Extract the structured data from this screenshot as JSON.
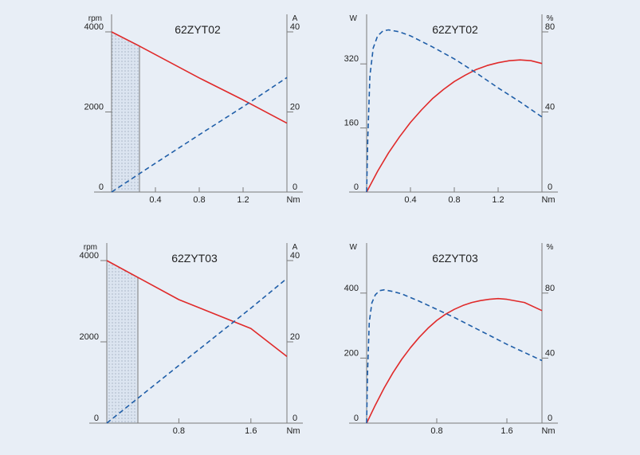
{
  "colors": {
    "background": "#e8eef6",
    "red": "#e02a2a",
    "blue": "#1f5ea8",
    "axis": "#7a7a7a"
  },
  "chart_data": [
    {
      "type": "line",
      "title": "62ZYT02",
      "left_axis": {
        "unit": "rpm",
        "range": [
          0,
          4000
        ],
        "ticks": [
          0,
          2000,
          4000
        ]
      },
      "right_axis": {
        "unit": "A",
        "range": [
          0,
          40
        ],
        "ticks": [
          0,
          20,
          40
        ]
      },
      "x_axis": {
        "unit": "Nm",
        "range": [
          0,
          1.6
        ],
        "ticks": [
          0.4,
          0.8,
          1.2
        ]
      },
      "shaded_region": {
        "x": [
          0,
          0.25
        ]
      },
      "series": [
        {
          "style": "solid",
          "color": "red",
          "axis": "left",
          "points": [
            [
              0,
              4000
            ],
            [
              0.25,
              3650
            ],
            [
              0.8,
              2850
            ],
            [
              1.2,
              2300
            ],
            [
              1.6,
              1720
            ]
          ]
        },
        {
          "style": "dashed",
          "color": "blue",
          "axis": "right",
          "points": [
            [
              0,
              0
            ],
            [
              0.4,
              7.2
            ],
            [
              0.8,
              14.3
            ],
            [
              1.2,
              21.3
            ],
            [
              1.6,
              28.6
            ]
          ]
        }
      ]
    },
    {
      "type": "line",
      "title": "62ZYT02",
      "left_axis": {
        "unit": "W",
        "range": [
          0,
          400
        ],
        "ticks": [
          0,
          160,
          320
        ]
      },
      "right_axis": {
        "unit": "%",
        "range": [
          0,
          80
        ],
        "ticks": [
          0,
          40,
          80
        ]
      },
      "x_axis": {
        "unit": "Nm",
        "range": [
          0,
          1.6
        ],
        "ticks": [
          0.4,
          0.8,
          1.2
        ]
      },
      "series": [
        {
          "style": "solid",
          "color": "red",
          "axis": "left",
          "points": [
            [
              0,
              0
            ],
            [
              0.1,
              52
            ],
            [
              0.2,
              98
            ],
            [
              0.3,
              138
            ],
            [
              0.4,
              174
            ],
            [
              0.5,
              205
            ],
            [
              0.6,
              233
            ],
            [
              0.7,
              256
            ],
            [
              0.8,
              276
            ],
            [
              0.9,
              292
            ],
            [
              1.0,
              306
            ],
            [
              1.1,
              316
            ],
            [
              1.2,
              323
            ],
            [
              1.3,
              328
            ],
            [
              1.4,
              330
            ],
            [
              1.5,
              328
            ],
            [
              1.6,
              321
            ]
          ]
        },
        {
          "style": "dashed",
          "color": "blue",
          "axis": "right",
          "points": [
            [
              0,
              0
            ],
            [
              0.01,
              26
            ],
            [
              0.03,
              58
            ],
            [
              0.06,
              72
            ],
            [
              0.1,
              78
            ],
            [
              0.15,
              80.5
            ],
            [
              0.2,
              81
            ],
            [
              0.3,
              80
            ],
            [
              0.4,
              78
            ],
            [
              0.6,
              72.5
            ],
            [
              0.8,
              66.5
            ],
            [
              1.0,
              59.5
            ],
            [
              1.2,
              52
            ],
            [
              1.4,
              45
            ],
            [
              1.6,
              37.5
            ]
          ]
        }
      ]
    },
    {
      "type": "line",
      "title": "62ZYT03",
      "left_axis": {
        "unit": "rpm",
        "range": [
          0,
          4000
        ],
        "ticks": [
          0,
          2000,
          4000
        ]
      },
      "right_axis": {
        "unit": "A",
        "range": [
          0,
          40
        ],
        "ticks": [
          0,
          20,
          40
        ]
      },
      "x_axis": {
        "unit": "Nm",
        "range": [
          0,
          2.0
        ],
        "ticks": [
          0.8,
          1.6
        ]
      },
      "shaded_region": {
        "x": [
          0,
          0.35
        ]
      },
      "series": [
        {
          "style": "solid",
          "color": "red",
          "axis": "left",
          "points": [
            [
              0,
              4000
            ],
            [
              0.35,
              3580
            ],
            [
              0.8,
              3040
            ],
            [
              1.6,
              2330
            ],
            [
              2.0,
              1640
            ]
          ]
        },
        {
          "style": "dashed",
          "color": "blue",
          "axis": "right",
          "points": [
            [
              0,
              0
            ],
            [
              0.8,
              14.2
            ],
            [
              1.6,
              28.3
            ],
            [
              2.0,
              35.6
            ]
          ]
        }
      ]
    },
    {
      "type": "line",
      "title": "62ZYT03",
      "left_axis": {
        "unit": "W",
        "range": [
          0,
          500
        ],
        "ticks": [
          0,
          200,
          400
        ]
      },
      "right_axis": {
        "unit": "%",
        "range": [
          0,
          100
        ],
        "ticks": [
          0,
          40,
          80
        ]
      },
      "x_axis": {
        "unit": "Nm",
        "range": [
          0,
          2.0
        ],
        "ticks": [
          0.8,
          1.6
        ]
      },
      "series": [
        {
          "style": "solid",
          "color": "red",
          "axis": "left",
          "points": [
            [
              0,
              0
            ],
            [
              0.1,
              56
            ],
            [
              0.2,
              108
            ],
            [
              0.3,
              155
            ],
            [
              0.4,
              196
            ],
            [
              0.5,
              232
            ],
            [
              0.6,
              264
            ],
            [
              0.7,
              292
            ],
            [
              0.8,
              316
            ],
            [
              0.9,
              335
            ],
            [
              1.0,
              350
            ],
            [
              1.1,
              362
            ],
            [
              1.2,
              371
            ],
            [
              1.3,
              377
            ],
            [
              1.4,
              381
            ],
            [
              1.5,
              383
            ],
            [
              1.6,
              381
            ],
            [
              1.8,
              371
            ],
            [
              2.0,
              346
            ]
          ]
        },
        {
          "style": "dashed",
          "color": "blue",
          "axis": "right",
          "points": [
            [
              0,
              0
            ],
            [
              0.01,
              30
            ],
            [
              0.03,
              62
            ],
            [
              0.06,
              74
            ],
            [
              0.1,
              79
            ],
            [
              0.15,
              81.5
            ],
            [
              0.2,
              82
            ],
            [
              0.3,
              81
            ],
            [
              0.4,
              79.5
            ],
            [
              0.6,
              75
            ],
            [
              0.8,
              70
            ],
            [
              1.0,
              65
            ],
            [
              1.2,
              59.5
            ],
            [
              1.4,
              54
            ],
            [
              1.6,
              48.5
            ],
            [
              1.8,
              43.5
            ],
            [
              2.0,
              38.5
            ]
          ]
        }
      ]
    }
  ]
}
